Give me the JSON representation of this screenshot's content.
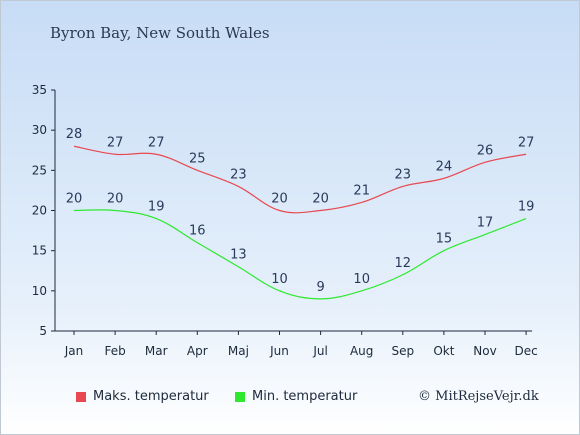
{
  "chart_data": {
    "type": "line",
    "title": "Byron Bay, New South Wales",
    "categories": [
      "Jan",
      "Feb",
      "Mar",
      "Apr",
      "Maj",
      "Jun",
      "Jul",
      "Aug",
      "Sep",
      "Okt",
      "Nov",
      "Dec"
    ],
    "series": [
      {
        "name": "Maks. temperatur",
        "color": "#e8484f",
        "values": [
          28,
          27,
          27,
          25,
          23,
          20,
          20,
          21,
          23,
          24,
          26,
          27
        ]
      },
      {
        "name": "Min. temperatur",
        "color": "#2fe82f",
        "values": [
          20,
          20,
          19,
          16,
          13,
          10,
          9,
          10,
          12,
          15,
          17,
          19
        ]
      }
    ],
    "ylim": [
      5,
      35
    ],
    "yticks": [
      5,
      10,
      15,
      20,
      25,
      30,
      35
    ],
    "grid": false,
    "legend": "bottom"
  },
  "copyright": "© MitRejseVejr.dk"
}
